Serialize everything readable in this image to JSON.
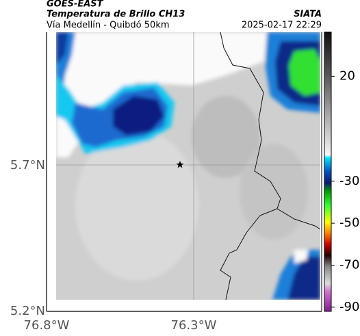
{
  "header": {
    "title": "GOES-EAST",
    "subtitle": "Temperatura de Brillo CH13",
    "location": "Vía Medellín - Quibdó 50km",
    "source": "SIATA",
    "datetime": "2025-02-17 22:29"
  },
  "map": {
    "x_labels": [
      "76.8°W",
      "76.3°W"
    ],
    "y_labels": [
      "5.7°N",
      "5.2°N"
    ]
  },
  "colorbar": {
    "lim": [
      -92,
      41
    ],
    "ticks": [
      20,
      -30,
      -50,
      -70,
      -90
    ]
  }
}
